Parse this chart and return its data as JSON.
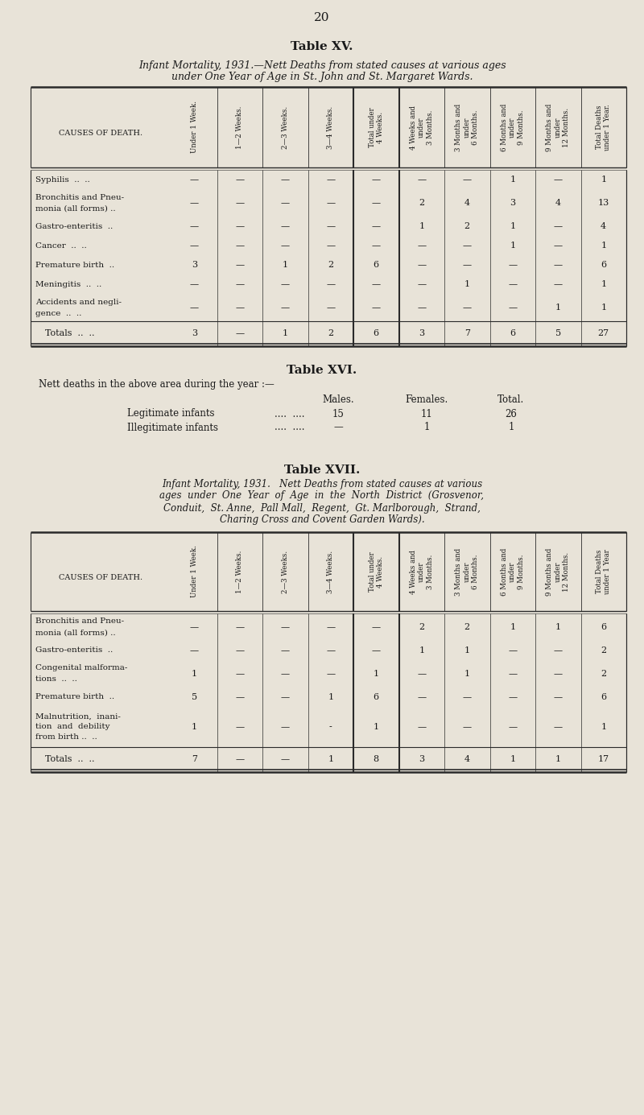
{
  "page_number": "20",
  "bg_color": "#e8e3d8",
  "text_color": "#1a1a1a",
  "table15": {
    "title": "Table XV.",
    "subtitle_line1": "Infant Mortality, 1931.—Nett Deaths from stated causes at various ages",
    "subtitle_line2": "under One Year of Age in St. John and St. Margaret Wards.",
    "col_headers": [
      "Under 1 Week.",
      "1—2 Weeks.",
      "2—3 Weeks.",
      "3—4 Weeks.",
      "Total under\n4 Weeks.",
      "4 Weeks and\nunder\n3 Months.",
      "3 Months and\nunder\n6 Months.",
      "6 Months and\nunder\n9 Months.",
      "9 Months and\nunder\n12 Months.",
      "Total Deaths\nunder 1 Year."
    ],
    "row_label_header": "CAUSES OF DEATH.",
    "rows": [
      {
        "label_lines": [
          "Syphilis  ..  .."
        ],
        "values": [
          "—",
          "—",
          "—",
          "—",
          "—",
          "—",
          "—",
          "1",
          "—",
          "1"
        ]
      },
      {
        "label_lines": [
          "Bronchitis and Pneu-",
          "monia (all forms) .."
        ],
        "values": [
          "—",
          "—",
          "—",
          "—",
          "—",
          "2",
          "4",
          "3",
          "4",
          "13"
        ]
      },
      {
        "label_lines": [
          "Gastro-enteritis  .."
        ],
        "values": [
          "—",
          "—",
          "—",
          "—",
          "—",
          "1",
          "2",
          "1",
          "—",
          "4"
        ]
      },
      {
        "label_lines": [
          "Cancer  ..  .."
        ],
        "values": [
          "—",
          "—",
          "—",
          "—",
          "—",
          "—",
          "—",
          "1",
          "—",
          "1"
        ]
      },
      {
        "label_lines": [
          "Premature birth  .."
        ],
        "values": [
          "3",
          "—",
          "1",
          "2",
          "6",
          "—",
          "—",
          "—",
          "—",
          "6"
        ]
      },
      {
        "label_lines": [
          "Meningitis  ..  .."
        ],
        "values": [
          "—",
          "—",
          "—",
          "—",
          "—",
          "—",
          "1",
          "—",
          "—",
          "1"
        ]
      },
      {
        "label_lines": [
          "Accidents and negli-",
          "gence  ..  .."
        ],
        "values": [
          "—",
          "—",
          "—",
          "—",
          "—",
          "—",
          "—",
          "—",
          "1",
          "1"
        ]
      }
    ],
    "totals_label": "Totals  ..  ..",
    "totals_values": [
      "3",
      "—",
      "1",
      "2",
      "6",
      "3",
      "7",
      "6",
      "5",
      "27"
    ]
  },
  "table16": {
    "title": "Table XVI.",
    "subtitle": "Nett deaths in the above area during the year :—",
    "col_headers": [
      "Males.",
      "Females.",
      "Total."
    ],
    "rows": [
      {
        "label": "Legitimate infants",
        "dots": "....  ....",
        "values": [
          "15",
          "11",
          "26"
        ]
      },
      {
        "label": "Illegitimate infants",
        "dots": "....  ....",
        "values": [
          "—",
          "1",
          "1"
        ]
      }
    ]
  },
  "table17": {
    "title": "Table XVII.",
    "subtitle_line1": "Infant Mortality, 1931.   Nett Deaths from stated causes at various",
    "subtitle_line2": "ages  under  One  Year  of  Age  in  the  North  District  (Grosvenor,",
    "subtitle_line3": "Conduit,  St. Anne,  Pall Mall,  Regent,  Gt. Marlborough,  Strand,",
    "subtitle_line4": "Charing Cross and Covent Garden Wards).",
    "col_headers": [
      "Under 1 Week.",
      "1—2 Weeks.",
      "2—3 Weeks.",
      "3—4 Weeks.",
      "Total under\n4 Weeks.",
      "4 Weeks and\nunder\n3 Months.",
      "3 Months and\nunder\n6 Months.",
      "6 Months and\nunder\n9 Months.",
      "9 Months and\nunder\n12 Months.",
      "Total Deaths\nunder 1 Year"
    ],
    "row_label_header": "CAUSES OF DEATH.",
    "rows": [
      {
        "label_lines": [
          "Bronchitis and Pneu-",
          "monia (all forms) .."
        ],
        "values": [
          "—",
          "—",
          "—",
          "—",
          "—",
          "2",
          "2",
          "1",
          "1",
          "6"
        ]
      },
      {
        "label_lines": [
          "Gastro-enteritis  .."
        ],
        "values": [
          "—",
          "—",
          "—",
          "—",
          "—",
          "1",
          "1",
          "—",
          "—",
          "2"
        ]
      },
      {
        "label_lines": [
          "Congenital malforma-",
          "tions  ..  .."
        ],
        "values": [
          "1",
          "—",
          "—",
          "—",
          "1",
          "—",
          "1",
          "—",
          "—",
          "2"
        ]
      },
      {
        "label_lines": [
          "Premature birth  .."
        ],
        "values": [
          "5",
          "—",
          "—",
          "1",
          "6",
          "—",
          "—",
          "—",
          "—",
          "6"
        ]
      },
      {
        "label_lines": [
          "Malnutrition,  inani-",
          "tion  and  debility",
          "from birth ..  .."
        ],
        "values": [
          "1",
          "—",
          "—",
          "-",
          "1",
          "—",
          "—",
          "—",
          "—",
          "1"
        ]
      }
    ],
    "totals_label": "Totals  ..  ..",
    "totals_values": [
      "7",
      "—",
      "—",
      "1",
      "8",
      "3",
      "4",
      "1",
      "1",
      "17"
    ]
  }
}
